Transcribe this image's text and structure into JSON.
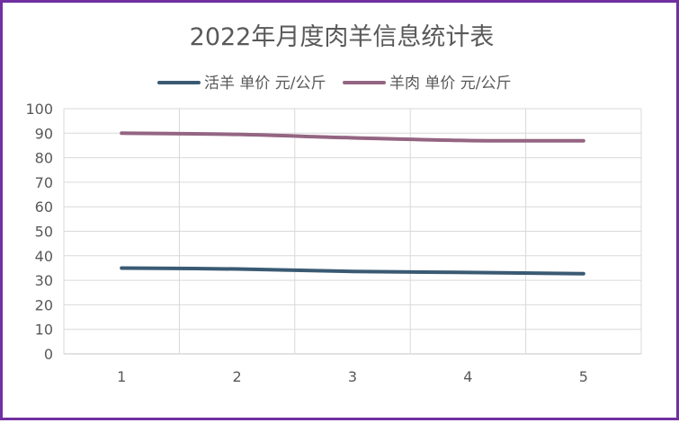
{
  "chart_data": {
    "type": "line",
    "title": "2022年月度肉羊信息统计表",
    "xlabel": "",
    "ylabel": "",
    "categories": [
      "1",
      "2",
      "3",
      "4",
      "5"
    ],
    "ylim": [
      0,
      100
    ],
    "yticks": [
      0,
      10,
      20,
      30,
      40,
      50,
      60,
      70,
      80,
      90,
      100
    ],
    "grid": true,
    "legend_position": "top",
    "series": [
      {
        "name": "活羊 单价 元/公斤",
        "color": "#3a5a73",
        "values": [
          35,
          34.6,
          33.6,
          33.2,
          32.7
        ]
      },
      {
        "name": "羊肉 单价 元/公斤",
        "color": "#946582",
        "values": [
          90,
          89.5,
          88.1,
          87,
          86.9
        ]
      }
    ]
  }
}
